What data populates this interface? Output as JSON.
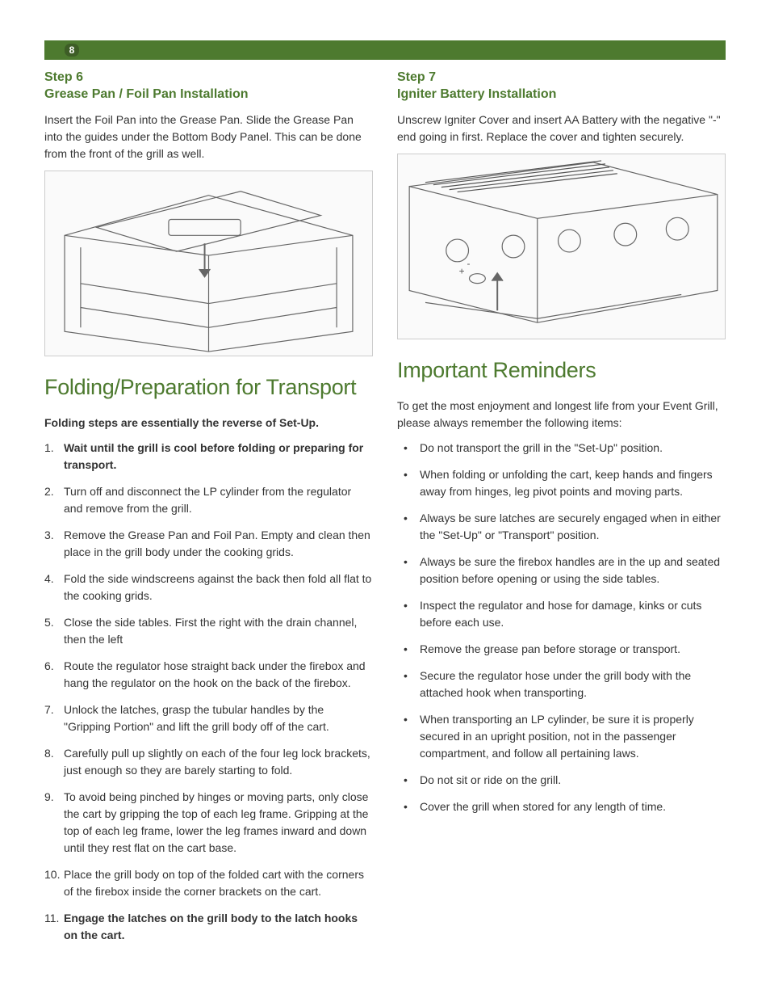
{
  "page_number": "8",
  "left": {
    "step6": {
      "label": "Step 6",
      "title": "Grease Pan / Foil Pan Installation",
      "body": "Insert the Foil Pan into the Grease Pan. Slide the Grease Pan into the guides under the Bottom Body Panel. This can be done from the front of the grill as well.",
      "illus_alt": "[grease pan installation diagram]"
    },
    "folding": {
      "title": "Folding/Preparation for Transport",
      "intro": "Folding steps are essentially the reverse of Set-Up.",
      "items": [
        {
          "bold": true,
          "text": "Wait until the grill is cool before folding or preparing for transport."
        },
        {
          "bold": false,
          "text": "Turn off and disconnect the LP cylinder from the regulator and remove from the grill."
        },
        {
          "bold": false,
          "text": "Remove the Grease Pan and Foil Pan. Empty and clean then place in the grill body under the cooking grids."
        },
        {
          "bold": false,
          "text": "Fold the side windscreens against the back then fold all flat to the cooking grids."
        },
        {
          "bold": false,
          "text": "Close the side tables. First the right with the drain channel, then the left"
        },
        {
          "bold": false,
          "text": "Route the regulator hose straight back under the firebox and hang the regulator on the hook on the back of the firebox."
        },
        {
          "bold": false,
          "text": "Unlock the latches, grasp the tubular handles by the \"Gripping Portion\" and lift the grill body off of the cart."
        },
        {
          "bold": false,
          "text": "Carefully pull up slightly on each of the four leg lock brackets, just enough so they are barely starting to fold."
        },
        {
          "bold": false,
          "text": "To avoid being pinched by hinges or moving parts, only close the cart by gripping the top of each leg frame. Gripping at the top of each leg frame, lower the leg frames inward and down until they rest flat on the cart base."
        },
        {
          "bold": false,
          "text": "Place the grill body on top of the folded cart with the corners of the firebox inside the corner brackets on the cart."
        },
        {
          "bold": true,
          "text": "Engage the latches on the grill body to the latch hooks on the cart."
        }
      ]
    }
  },
  "right": {
    "step7": {
      "label": "Step 7",
      "title": "Igniter Battery Installation",
      "body": "Unscrew Igniter Cover and insert AA Battery with the negative \"-\" end going in first. Replace the cover and tighten securely.",
      "illus_alt": "[igniter battery diagram]"
    },
    "reminders": {
      "title": "Important Reminders",
      "intro": "To get the most enjoyment and longest life from your Event Grill, please always remember the following items:",
      "items": [
        "Do not transport the grill in the \"Set-Up\" position.",
        "When folding or unfolding the cart, keep hands and fingers away from hinges, leg pivot points and moving parts.",
        "Always be sure latches are securely engaged when in either the \"Set-Up\" or \"Transport\" position.",
        "Always be sure the firebox handles are in the up and seated position before opening or using the side tables.",
        "Inspect the regulator and hose for damage, kinks or cuts before each use.",
        "Remove the grease pan before storage or transport.",
        "Secure the regulator hose under the grill body with the attached hook when transporting.",
        "When transporting an LP cylinder, be sure it is properly secured in an upright position, not in the passenger compartment, and follow all pertaining laws.",
        "Do not sit or ride on the grill.",
        "Cover the grill when stored for any length of time."
      ]
    }
  }
}
